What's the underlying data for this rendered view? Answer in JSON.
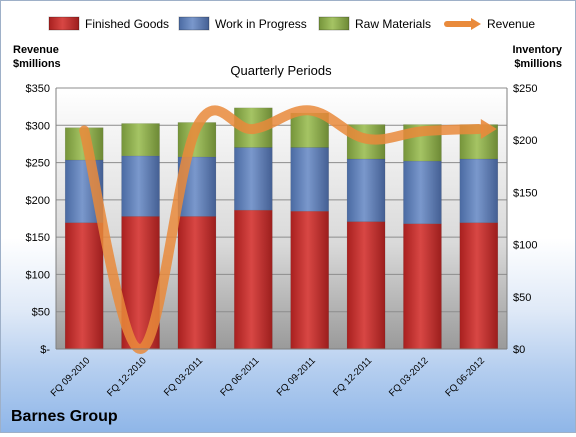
{
  "chart_data": {
    "type": "bar",
    "stacked": true,
    "title": "Quarterly Periods",
    "company": "Barnes Group",
    "left_axis_label": [
      "Revenue",
      "$millions"
    ],
    "right_axis_label": [
      "Inventory",
      "$millions"
    ],
    "categories": [
      "FQ 09-2010",
      "FQ 12-2010",
      "FQ 03-2011",
      "FQ 06-2011",
      "FQ 09-2011",
      "FQ 12-2011",
      "FQ 03-2012",
      "FQ 06-2012"
    ],
    "left_ticks": [
      "$-",
      "$50",
      "$100",
      "$150",
      "$200",
      "$250",
      "$300",
      "$350"
    ],
    "right_ticks": [
      "$0",
      "$50",
      "$100",
      "$150",
      "$200",
      "$250"
    ],
    "left_range": [
      0,
      350
    ],
    "right_range": [
      0,
      250
    ],
    "legend_position": "top",
    "grid": true,
    "series": [
      {
        "name": "Finished Goods",
        "axis": "right",
        "color": "#c0302e",
        "values": [
          121,
          127,
          127,
          133,
          132,
          122,
          120,
          121
        ]
      },
      {
        "name": "Work in Progress",
        "axis": "right",
        "color": "#5d7db5",
        "values": [
          60,
          58,
          57,
          60,
          61,
          60,
          60,
          61
        ]
      },
      {
        "name": "Raw Materials",
        "axis": "right",
        "color": "#8ead4d",
        "values": [
          31,
          31,
          33,
          38,
          33,
          33,
          35,
          33
        ]
      },
      {
        "name": "Revenue",
        "axis": "left",
        "type": "line",
        "color": "#e98a3b",
        "values": [
          293,
          0,
          298,
          295,
          320,
          282,
          292,
          295
        ]
      }
    ]
  }
}
